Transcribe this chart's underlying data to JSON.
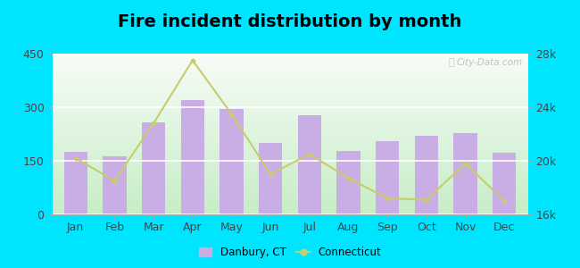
{
  "title": "Fire incident distribution by month",
  "months": [
    "Jan",
    "Feb",
    "Mar",
    "Apr",
    "May",
    "Jun",
    "Jul",
    "Aug",
    "Sep",
    "Oct",
    "Nov",
    "Dec"
  ],
  "danbury_values": [
    175,
    163,
    258,
    320,
    295,
    200,
    278,
    178,
    205,
    220,
    228,
    172
  ],
  "connecticut_values": [
    20200,
    18500,
    22800,
    27500,
    23500,
    19000,
    20500,
    18700,
    17200,
    17100,
    19800,
    17000
  ],
  "bar_color": "#c9aee5",
  "line_color": "#c8cc6e",
  "bar_ylim": [
    0,
    450
  ],
  "bar_yticks": [
    0,
    150,
    300,
    450
  ],
  "right_ylim": [
    16000,
    28000
  ],
  "right_yticks": [
    16000,
    20000,
    24000,
    28000
  ],
  "right_ytick_labels": [
    "16k",
    "20k",
    "24k",
    "28k"
  ],
  "outer_bg": "#00e5ff",
  "title_fontsize": 14,
  "label_fontsize": 9,
  "legend_label_danbury": "Danbury, CT",
  "legend_label_connecticut": "Connecticut",
  "watermark": "City-Data.com"
}
